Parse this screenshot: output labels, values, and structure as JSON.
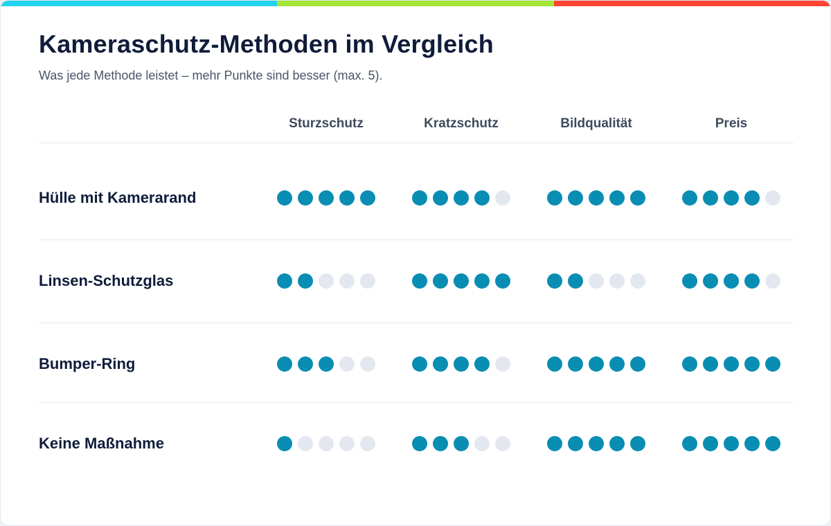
{
  "colors": {
    "bar_segments": [
      "#22d3ee",
      "#a3e635",
      "#ff4433"
    ],
    "dot_filled": "#0a8db3",
    "dot_empty": "#e3e8f0"
  },
  "header": {
    "title": "Kameraschutz-Methoden im Vergleich",
    "subtitle": "Was jede Methode leistet – mehr Punkte sind besser (max. 5)."
  },
  "chart_data": {
    "type": "table",
    "max": 5,
    "columns": [
      "Sturzschutz",
      "Kratzschutz",
      "Bildqualität",
      "Preis"
    ],
    "rows": [
      {
        "label": "Hülle mit Kamerarand",
        "values": [
          5,
          4,
          5,
          4
        ]
      },
      {
        "label": "Linsen-Schutzglas",
        "values": [
          2,
          5,
          2,
          4
        ]
      },
      {
        "label": "Bumper-Ring",
        "values": [
          3,
          4,
          5,
          5
        ]
      },
      {
        "label": "Keine Maßnahme",
        "values": [
          1,
          3,
          5,
          5
        ]
      }
    ]
  }
}
